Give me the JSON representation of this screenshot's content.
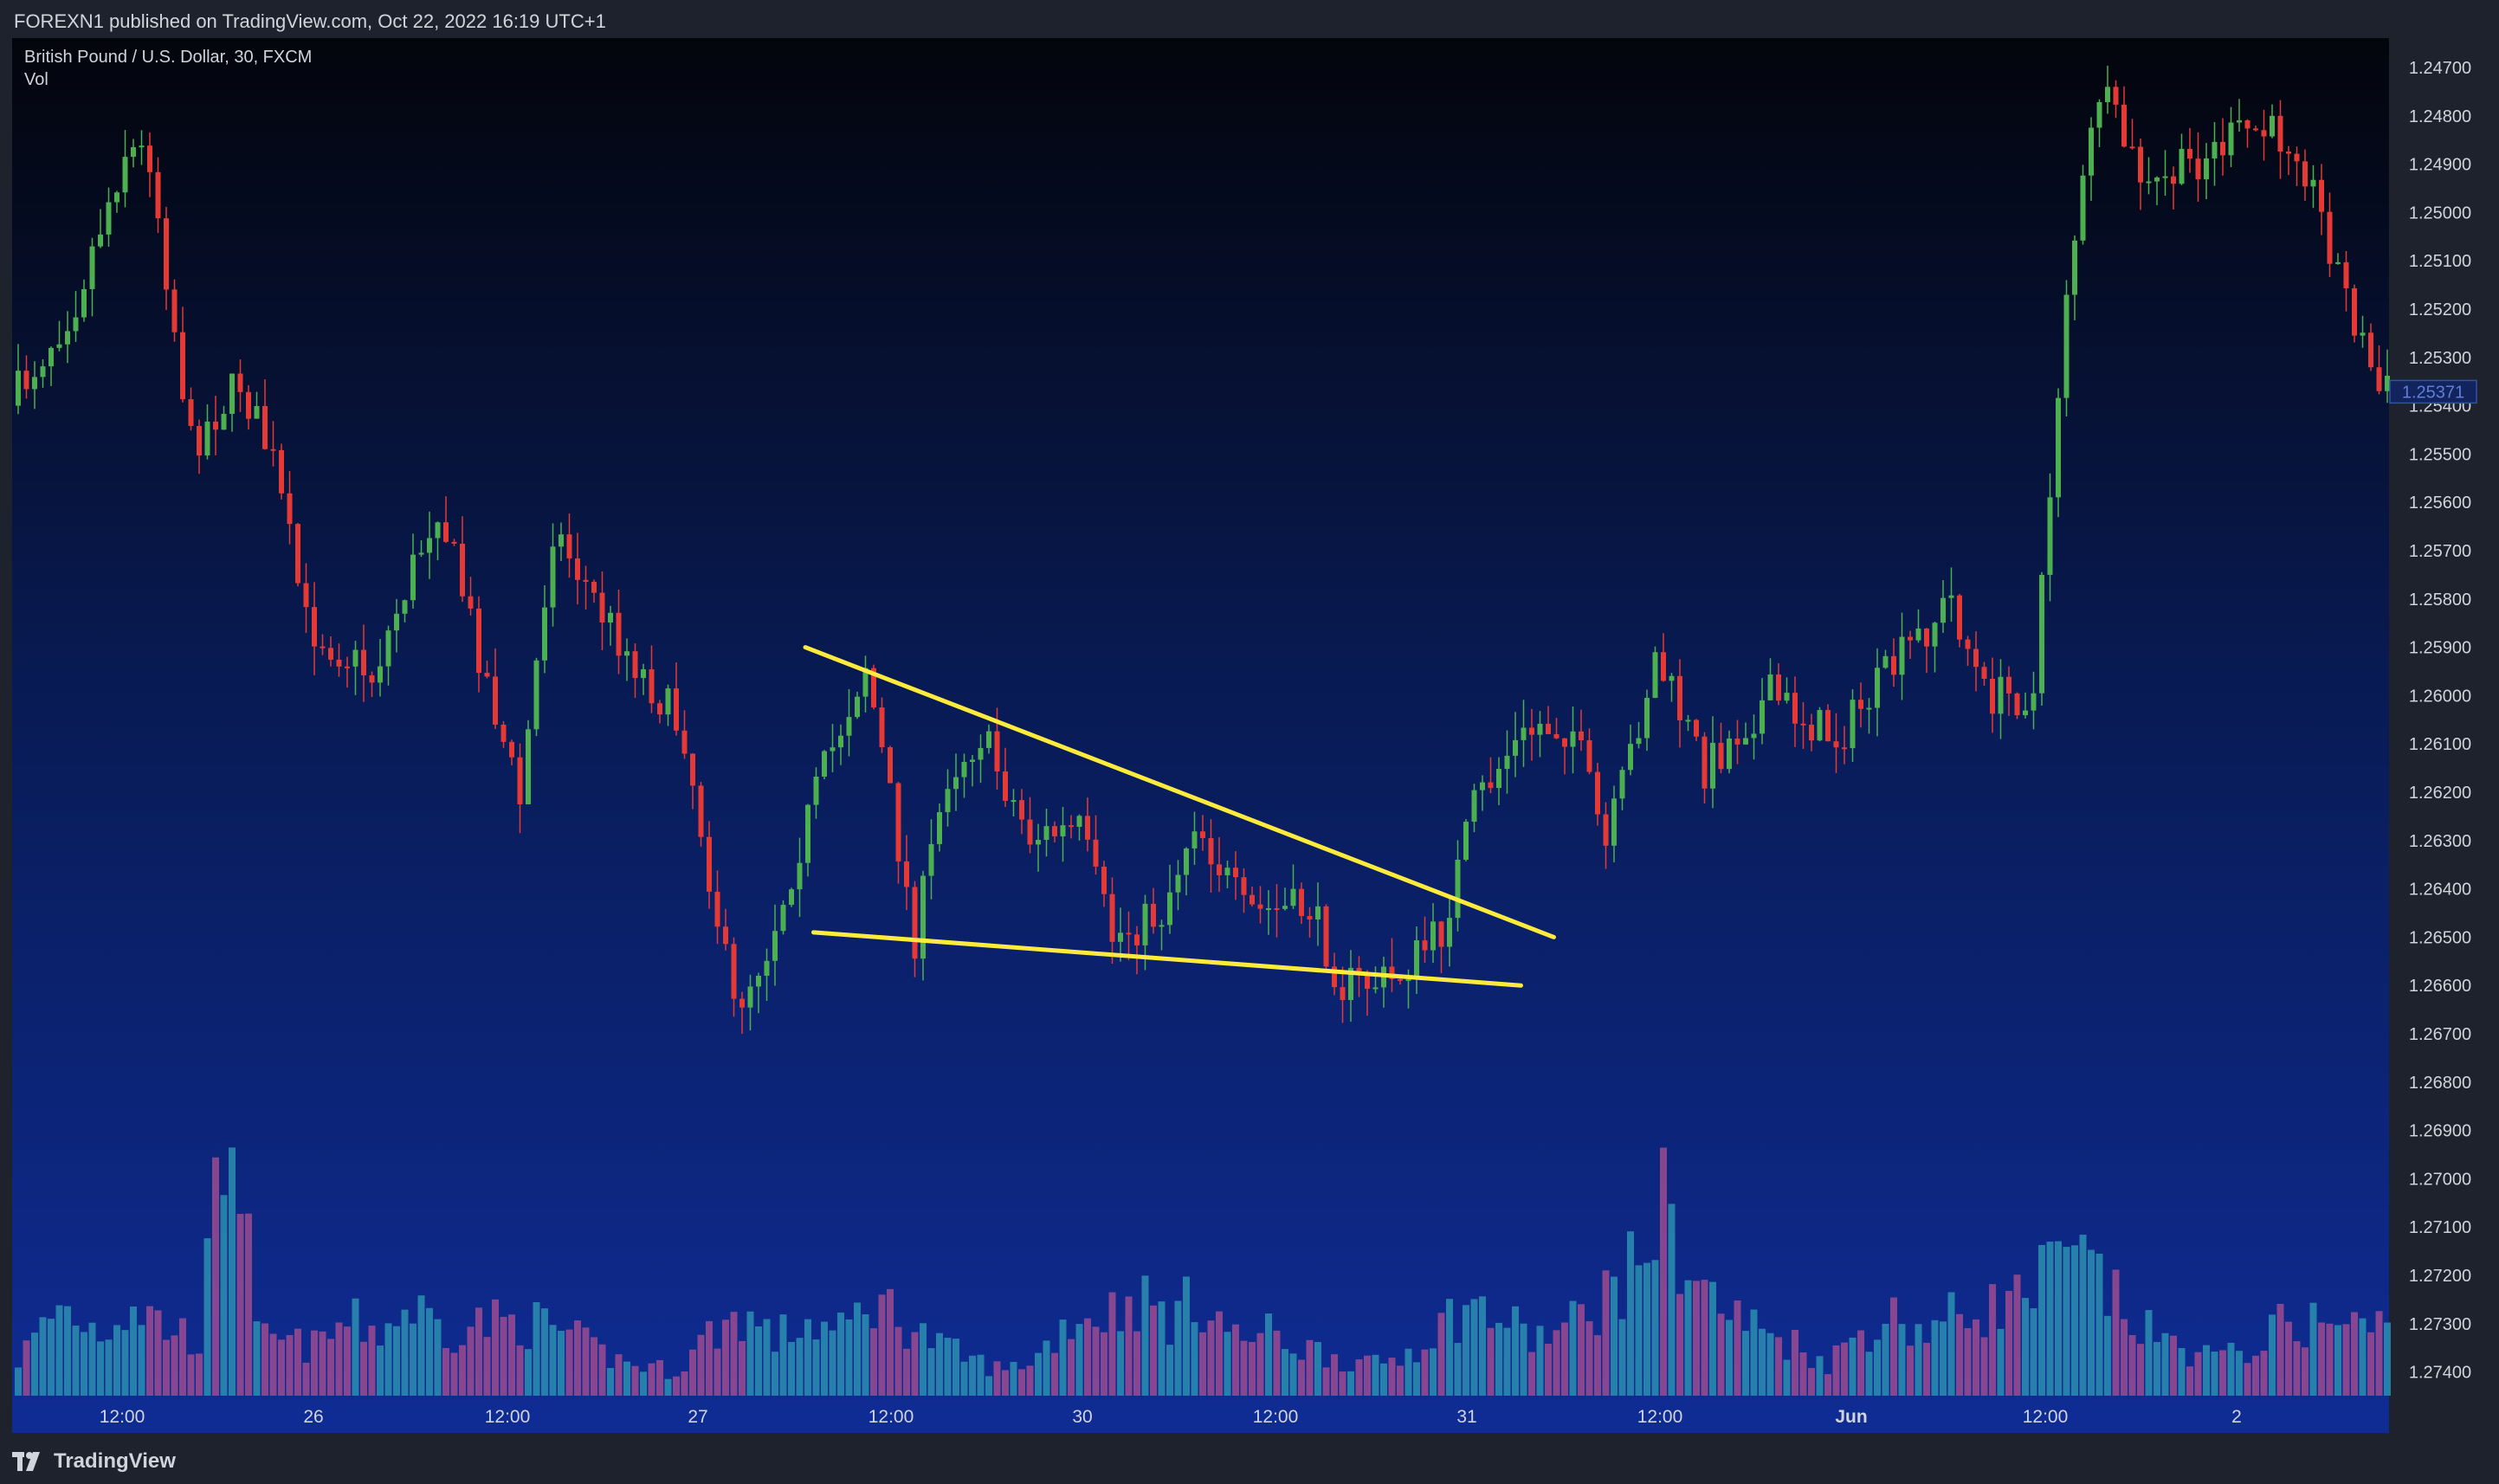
{
  "header": {
    "publish_info": "FOREXN1 published on TradingView.com, Oct 22, 2022 16:19 UTC+1"
  },
  "legend": {
    "symbol_line": "British Pound / U.S. Dollar, 30, FXCM",
    "volume_label": "Vol"
  },
  "footer": {
    "brand": "TradingView"
  },
  "colors": {
    "up": "#4caf50",
    "down": "#e53935",
    "vol_up": "#2a8fb0",
    "vol_down": "#9c4b8f",
    "trendline": "#ffeb3b",
    "axis_text": "#d1d4dc",
    "bg_top": "#03050c",
    "bg_bottom": "#0f2c95"
  },
  "chart_data": {
    "type": "candlestick",
    "instrument": "British Pound / U.S. Dollar",
    "timeframe": "30",
    "source": "FXCM",
    "y_axis": {
      "scale": "inverted",
      "ylim": [
        1.2472,
        1.2742
      ],
      "ticks": [
        "1.24700",
        "1.24800",
        "1.24900",
        "1.25000",
        "1.25100",
        "1.25200",
        "1.25300",
        "1.25400",
        "1.25500",
        "1.25600",
        "1.25700",
        "1.25800",
        "1.25900",
        "1.26000",
        "1.26100",
        "1.26200",
        "1.26300",
        "1.26400",
        "1.26500",
        "1.26600",
        "1.26700",
        "1.26800",
        "1.26900",
        "1.27000",
        "1.27100",
        "1.27200",
        "1.27300",
        "1.27400"
      ]
    },
    "x_axis": {
      "ticks": [
        "12:00",
        "26",
        "12:00",
        "27",
        "12:00",
        "30",
        "12:00",
        "31",
        "12:00",
        "Jun",
        "12:00",
        "2"
      ]
    },
    "last_price": "1.25371",
    "trendlines": [
      {
        "name": "upper",
        "from": {
          "bar": 96,
          "price": 1.259
        },
        "to": {
          "bar": 187,
          "price": 1.265
        }
      },
      {
        "name": "lower",
        "from": {
          "bar": 97,
          "price": 1.2649
        },
        "to": {
          "bar": 183,
          "price": 1.266
        }
      }
    ],
    "anchors": [
      [
        0,
        1.254
      ],
      [
        8,
        1.2518
      ],
      [
        14,
        1.2487
      ],
      [
        17,
        1.2488
      ],
      [
        22,
        1.2548
      ],
      [
        28,
        1.2535
      ],
      [
        32,
        1.2552
      ],
      [
        36,
        1.2585
      ],
      [
        44,
        1.2596
      ],
      [
        52,
        1.256
      ],
      [
        58,
        1.2597
      ],
      [
        62,
        1.2622
      ],
      [
        66,
        1.2565
      ],
      [
        72,
        1.2583
      ],
      [
        82,
        1.2608
      ],
      [
        88,
        1.2665
      ],
      [
        92,
        1.2652
      ],
      [
        98,
        1.262
      ],
      [
        104,
        1.2593
      ],
      [
        110,
        1.265
      ],
      [
        114,
        1.2616
      ],
      [
        118,
        1.2608
      ],
      [
        124,
        1.2629
      ],
      [
        130,
        1.2628
      ],
      [
        134,
        1.265
      ],
      [
        140,
        1.2645
      ],
      [
        144,
        1.2625
      ],
      [
        150,
        1.2645
      ],
      [
        158,
        1.2644
      ],
      [
        162,
        1.266
      ],
      [
        168,
        1.2659
      ],
      [
        174,
        1.2649
      ],
      [
        178,
        1.2623
      ],
      [
        182,
        1.2612
      ],
      [
        186,
        1.2606
      ],
      [
        190,
        1.2607
      ],
      [
        194,
        1.2632
      ],
      [
        200,
        1.2592
      ],
      [
        206,
        1.2615
      ],
      [
        214,
        1.26
      ],
      [
        222,
        1.2609
      ],
      [
        230,
        1.2592
      ],
      [
        236,
        1.258
      ],
      [
        240,
        1.26
      ],
      [
        246,
        1.26
      ],
      [
        250,
        1.2515
      ],
      [
        254,
        1.2475
      ],
      [
        260,
        1.2496
      ],
      [
        266,
        1.2489
      ],
      [
        272,
        1.2483
      ],
      [
        278,
        1.2485
      ],
      [
        284,
        1.2517
      ],
      [
        288,
        1.2537
      ]
    ],
    "volume_profile": [
      [
        0,
        22
      ],
      [
        5,
        55
      ],
      [
        10,
        40
      ],
      [
        14,
        58
      ],
      [
        18,
        42
      ],
      [
        22,
        35
      ],
      [
        26,
        190
      ],
      [
        29,
        35
      ],
      [
        36,
        30
      ],
      [
        40,
        45
      ],
      [
        44,
        40
      ],
      [
        48,
        55
      ],
      [
        52,
        40
      ],
      [
        56,
        45
      ],
      [
        62,
        45
      ],
      [
        66,
        40
      ],
      [
        70,
        28
      ],
      [
        74,
        20
      ],
      [
        80,
        15
      ],
      [
        84,
        38
      ],
      [
        88,
        50
      ],
      [
        92,
        35
      ],
      [
        96,
        45
      ],
      [
        100,
        38
      ],
      [
        104,
        60
      ],
      [
        108,
        45
      ],
      [
        112,
        30
      ],
      [
        116,
        22
      ],
      [
        120,
        15
      ],
      [
        124,
        25
      ],
      [
        128,
        48
      ],
      [
        132,
        50
      ],
      [
        136,
        60
      ],
      [
        140,
        48
      ],
      [
        144,
        60
      ],
      [
        148,
        35
      ],
      [
        152,
        38
      ],
      [
        156,
        30
      ],
      [
        160,
        25
      ],
      [
        164,
        18
      ],
      [
        168,
        24
      ],
      [
        172,
        40
      ],
      [
        176,
        55
      ],
      [
        180,
        48
      ],
      [
        184,
        35
      ],
      [
        188,
        40
      ],
      [
        192,
        58
      ],
      [
        196,
        75
      ],
      [
        200,
        115
      ],
      [
        204,
        70
      ],
      [
        208,
        50
      ],
      [
        212,
        40
      ],
      [
        216,
        32
      ],
      [
        220,
        20
      ],
      [
        224,
        40
      ],
      [
        228,
        48
      ],
      [
        232,
        40
      ],
      [
        236,
        50
      ],
      [
        240,
        55
      ],
      [
        244,
        60
      ],
      [
        248,
        80
      ],
      [
        252,
        78
      ],
      [
        256,
        50
      ],
      [
        260,
        35
      ],
      [
        264,
        28
      ],
      [
        268,
        22
      ],
      [
        272,
        32
      ],
      [
        276,
        45
      ],
      [
        280,
        45
      ],
      [
        284,
        42
      ]
    ]
  }
}
